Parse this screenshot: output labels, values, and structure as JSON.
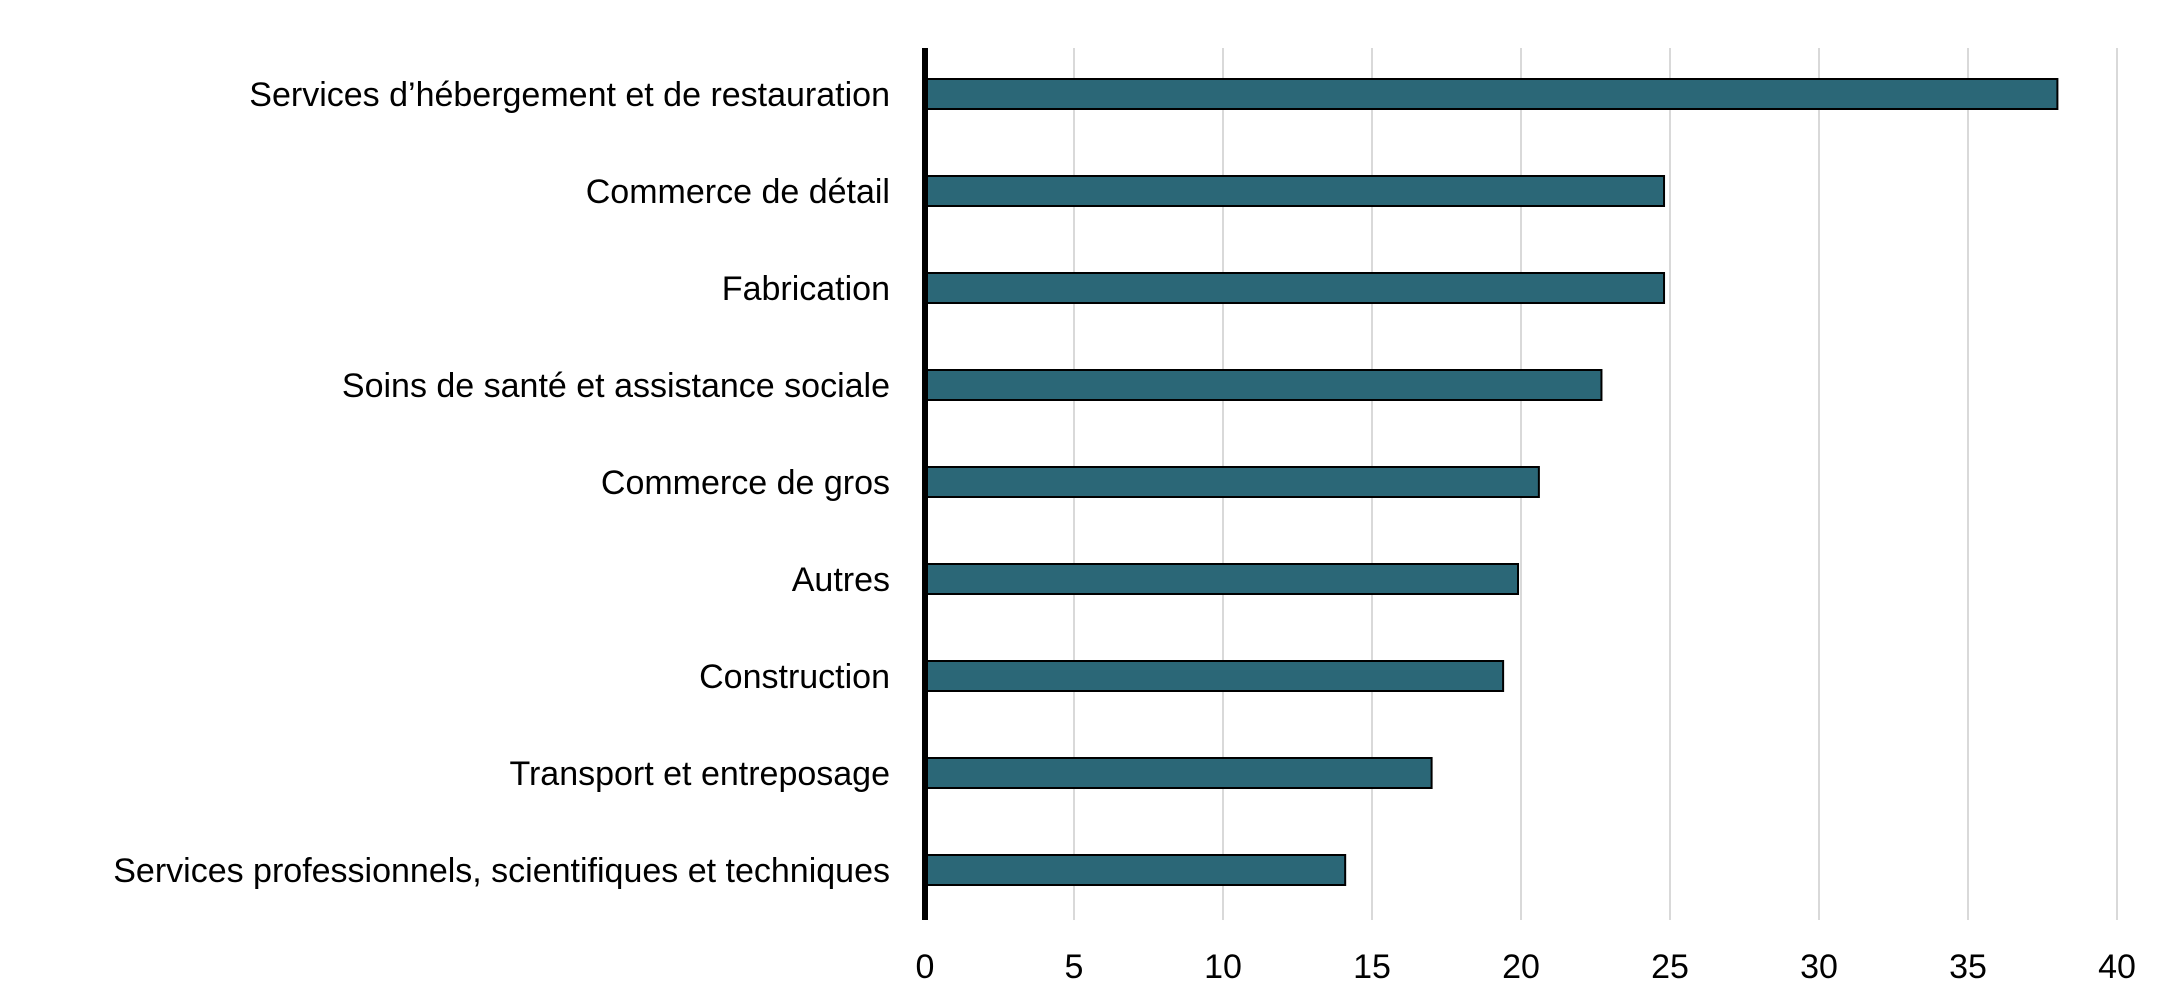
{
  "chart_data": {
    "type": "bar",
    "orientation": "horizontal",
    "title": "",
    "xlabel": "",
    "ylabel": "",
    "categories": [
      "Services d’hébergement et de restauration",
      "Commerce de détail",
      "Fabrication",
      "Soins de santé et assistance sociale",
      "Commerce de gros",
      "Autres",
      "Construction",
      "Transport et entreposage",
      "Services professionnels, scientifiques et techniques"
    ],
    "values": [
      38.0,
      24.8,
      24.8,
      22.7,
      20.6,
      19.9,
      19.4,
      17.0,
      14.1
    ],
    "xlim": [
      0,
      40
    ],
    "xticks": [
      "0",
      "5",
      "10",
      "15",
      "20",
      "25",
      "30",
      "35",
      "40"
    ],
    "grid": "vertical",
    "bar_color": "#2b6777",
    "legend": "none"
  }
}
